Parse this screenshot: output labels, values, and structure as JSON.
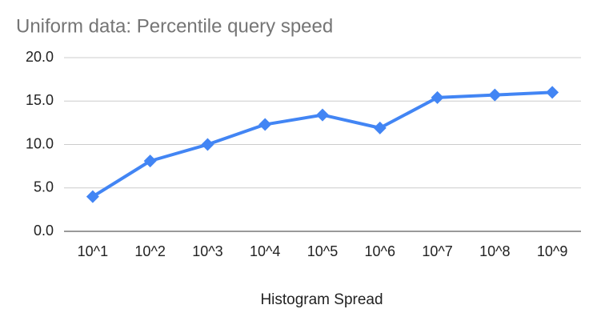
{
  "chart_data": {
    "type": "line",
    "title": "Uniform data: Percentile query speed",
    "x_label": "Histogram Spread",
    "categories": [
      "10^1",
      "10^2",
      "10^3",
      "10^4",
      "10^5",
      "10^6",
      "10^7",
      "10^8",
      "10^9"
    ],
    "series": [
      {
        "color": "#4285f4",
        "values": [
          4.0,
          8.1,
          10.0,
          12.3,
          13.4,
          11.9,
          15.4,
          15.7,
          16.0
        ]
      }
    ],
    "ylim": [
      0,
      20
    ],
    "yticks": [
      {
        "value": 0,
        "label": "0.0"
      },
      {
        "value": 5,
        "label": "5.0"
      },
      {
        "value": 10,
        "label": "10.0"
      },
      {
        "value": 15,
        "label": "15.0"
      },
      {
        "value": 20,
        "label": "20.0"
      }
    ],
    "grid": true
  }
}
